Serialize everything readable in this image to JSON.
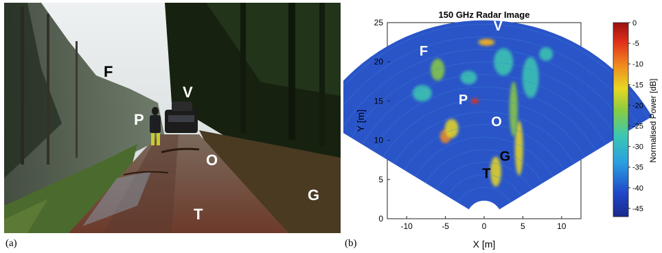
{
  "panel_a": {
    "label": "(a)",
    "markers": [
      "F",
      "P",
      "V",
      "O",
      "G",
      "T"
    ]
  },
  "panel_b": {
    "label": "(b)",
    "markers": [
      "V",
      "F",
      "P",
      "O",
      "G",
      "T"
    ]
  },
  "chart_data": {
    "type": "heatmap",
    "title": "150 GHz Radar Image",
    "xlabel": "X [m]",
    "ylabel": "Y [m]",
    "xlim": [
      -12.5,
      12.5
    ],
    "ylim": [
      0,
      25
    ],
    "x_ticks": [
      -10,
      -5,
      0,
      5,
      10
    ],
    "y_ticks": [
      0,
      5,
      10,
      15,
      20,
      25
    ],
    "colorbar": {
      "label": "Normalised Power [dB]",
      "range": [
        -47,
        0
      ],
      "ticks": [
        0,
        -5,
        -10,
        -15,
        -20,
        -25,
        -30,
        -35,
        -40,
        -45
      ],
      "colormap": "jet"
    },
    "annotations": [
      {
        "text": "V",
        "x": 1.8,
        "y": 24
      },
      {
        "text": "F",
        "x": -7.8,
        "y": 20.8
      },
      {
        "text": "P",
        "x": -2.7,
        "y": 14.6
      },
      {
        "text": "O",
        "x": 1.6,
        "y": 11.8
      },
      {
        "text": "G",
        "x": 2.7,
        "y": 7.4
      },
      {
        "text": "T",
        "x": 0.3,
        "y": 5.2
      }
    ]
  }
}
